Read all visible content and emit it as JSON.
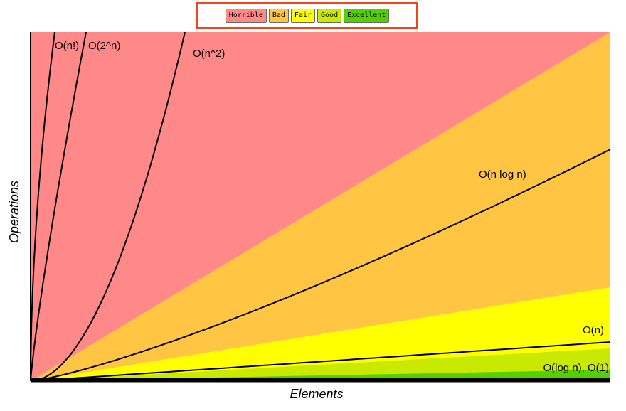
{
  "chart_data": {
    "type": "area",
    "xlabel": "Elements",
    "ylabel": "Operations",
    "legend": {
      "placement": "top-center",
      "items": [
        {
          "label": "Horrible",
          "color": "#ff8888"
        },
        {
          "label": "Bad",
          "color": "#ffc543"
        },
        {
          "label": "Fair",
          "color": "#ffff00"
        },
        {
          "label": "Good",
          "color": "#c8ea00"
        },
        {
          "label": "Excellent",
          "color": "#53d000"
        }
      ]
    },
    "series": [
      {
        "name": "O(n!)",
        "complexity": "factorial"
      },
      {
        "name": "O(2^n)",
        "complexity": "exponential"
      },
      {
        "name": "O(n^2)",
        "complexity": "quadratic"
      },
      {
        "name": "O(n log n)",
        "complexity": "linearithmic"
      },
      {
        "name": "O(n)",
        "complexity": "linear"
      },
      {
        "name": "O(log n), O(1)",
        "complexity": "logarithmic-constant"
      }
    ],
    "grid": false
  }
}
